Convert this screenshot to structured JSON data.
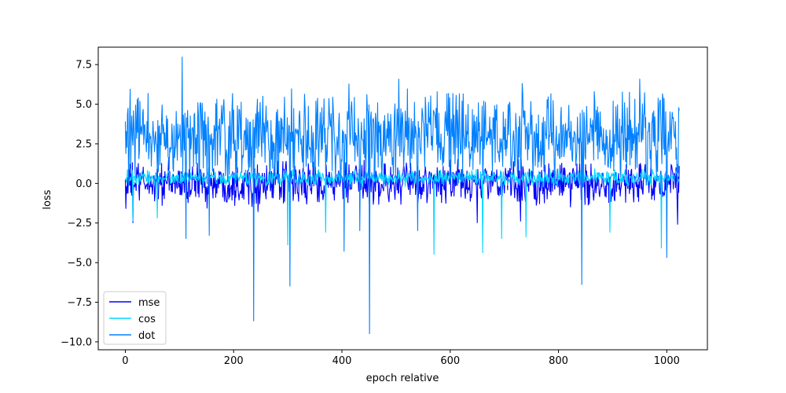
{
  "chart_data": {
    "type": "line",
    "xlabel": "epoch relative",
    "ylabel": "loss",
    "xlim": [
      -50,
      1075
    ],
    "ylim": [
      -10.5,
      8.6
    ],
    "x_ticks": [
      0,
      200,
      400,
      600,
      800,
      1000
    ],
    "x_tick_labels": [
      "0",
      "200",
      "400",
      "600",
      "800",
      "1000"
    ],
    "y_ticks": [
      -10.0,
      -7.5,
      -5.0,
      -2.5,
      0.0,
      2.5,
      5.0,
      7.5
    ],
    "y_tick_labels": [
      "−10.0",
      "−7.5",
      "−5.0",
      "−2.5",
      "0.0",
      "2.5",
      "5.0",
      "7.5"
    ],
    "grid": false,
    "legend_position": "lower-left",
    "n_points": 1024,
    "series": [
      {
        "name": "mse",
        "color": "#0000ff",
        "center": 0.0,
        "spread": 0.8,
        "spikes": [
          [
            1,
            -1.6
          ],
          [
            14,
            -2.5
          ],
          [
            245,
            -1.8
          ],
          [
            600,
            1.5
          ],
          [
            650,
            -2.5
          ],
          [
            730,
            -2.4
          ],
          [
            1020,
            -2.6
          ],
          [
            1023,
            1.1
          ]
        ]
      },
      {
        "name": "cos",
        "color": "#00d5ff",
        "center": 0.35,
        "spread": 0.3,
        "spikes": [
          [
            14,
            -2.4
          ],
          [
            59,
            -2.2
          ],
          [
            300,
            -3.9
          ],
          [
            370,
            -3.1
          ],
          [
            570,
            -4.5
          ],
          [
            660,
            -4.4
          ],
          [
            695,
            -3.5
          ],
          [
            740,
            -3.4
          ],
          [
            895,
            -3.1
          ],
          [
            990,
            -4.1
          ]
        ]
      },
      {
        "name": "dot",
        "color": "#0080ff",
        "center": 2.9,
        "spread": 1.6,
        "spikes": [
          [
            105,
            8.0
          ],
          [
            112,
            -3.5
          ],
          [
            155,
            -3.3
          ],
          [
            237,
            -8.7
          ],
          [
            304,
            -6.5
          ],
          [
            404,
            -4.3
          ],
          [
            433,
            -3.0
          ],
          [
            451,
            -9.5
          ],
          [
            505,
            6.6
          ],
          [
            540,
            -3.0
          ],
          [
            843,
            -6.4
          ],
          [
            1000,
            -4.7
          ],
          [
            950,
            6.6
          ],
          [
            1023,
            4.6
          ]
        ]
      }
    ]
  }
}
